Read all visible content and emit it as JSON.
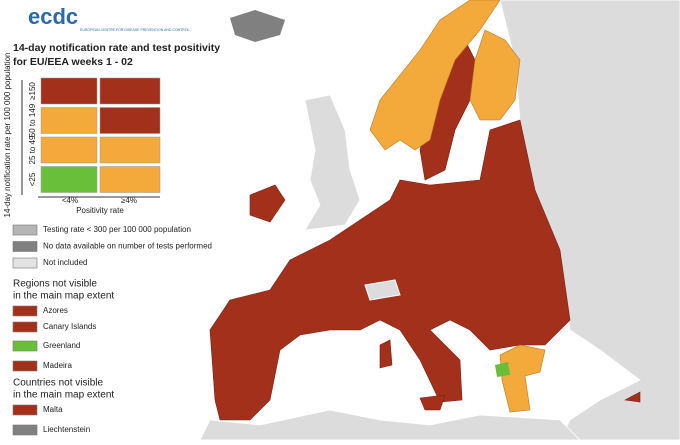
{
  "logo": {
    "name": "ecdc",
    "subtitle": "EUROPEAN CENTRE FOR DISEASE PREVENTION AND CONTROL"
  },
  "title": [
    "14-day notification rate and test positivity",
    "for EU/EEA weeks 1 - 02"
  ],
  "matrix": {
    "y_label": "14-day notification rate per 100 000 population",
    "x_label": "Positivity rate",
    "columns": [
      "<4%",
      "≥4%"
    ],
    "rows": [
      {
        "label": "≥150",
        "colors": [
          "#a3301b",
          "#a3301b"
        ]
      },
      {
        "label": "50 to 149",
        "colors": [
          "#f4a93b",
          "#a3301b"
        ]
      },
      {
        "label": "25 to 49",
        "colors": [
          "#f4a93b",
          "#f4a93b"
        ]
      },
      {
        "label": "<25",
        "colors": [
          "#6abf3a",
          "#f4a93b"
        ]
      }
    ]
  },
  "legend": [
    {
      "label": "Testing rate < 300 per 100 000 population",
      "color": "#b5b5b5"
    },
    {
      "label": "No data available on number of tests performed",
      "color": "#808080"
    },
    {
      "label": "Not included",
      "color": "#e3e3e3"
    }
  ],
  "regions": {
    "heading": [
      "Regions not visible",
      "in the main map extent"
    ],
    "items": [
      {
        "label": "Azores",
        "color": "#a3301b"
      },
      {
        "label": "Canary Islands",
        "color": "#a3301b"
      },
      {
        "label": "Greenland",
        "color": "#6abf3a"
      },
      {
        "label": "Madeira",
        "color": "#a3301b"
      }
    ]
  },
  "countries": {
    "heading": [
      "Countries not visible",
      "in the main map extent"
    ],
    "items": [
      {
        "label": "Malta",
        "color": "#a3301b"
      },
      {
        "label": "Liechtenstein",
        "color": "#808080"
      }
    ]
  }
}
